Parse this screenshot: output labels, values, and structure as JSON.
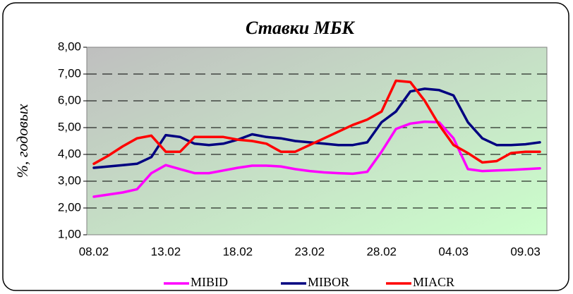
{
  "chart_data": {
    "type": "line",
    "title": "Ставки МБК",
    "y_label": "%, годовых",
    "categories": [
      "08.02",
      null,
      null,
      null,
      null,
      "13.02",
      null,
      null,
      null,
      null,
      "18.02",
      null,
      null,
      null,
      null,
      "23.02",
      null,
      null,
      null,
      null,
      "28.02",
      null,
      null,
      null,
      null,
      "04.03",
      null,
      null,
      null,
      null,
      "09.03",
      null
    ],
    "series": [
      {
        "name": "MIBID",
        "color": "#ff00ff",
        "values": [
          2.42,
          2.5,
          2.58,
          2.7,
          3.3,
          3.6,
          3.45,
          3.3,
          3.3,
          3.4,
          3.5,
          3.58,
          3.58,
          3.55,
          3.45,
          3.38,
          3.33,
          3.3,
          3.28,
          3.35,
          4.1,
          4.95,
          5.15,
          5.22,
          5.2,
          4.6,
          3.45,
          3.38,
          3.4,
          3.42,
          3.45,
          3.48
        ]
      },
      {
        "name": "MIBOR",
        "color": "#000080",
        "values": [
          3.5,
          3.55,
          3.6,
          3.65,
          3.9,
          4.72,
          4.65,
          4.4,
          4.35,
          4.4,
          4.55,
          4.75,
          4.65,
          4.6,
          4.5,
          4.45,
          4.4,
          4.35,
          4.35,
          4.45,
          5.2,
          5.6,
          6.35,
          6.45,
          6.4,
          6.2,
          5.2,
          4.6,
          4.35,
          4.35,
          4.38,
          4.45
        ]
      },
      {
        "name": "MIACR",
        "color": "#ff0000",
        "values": [
          3.65,
          3.95,
          4.3,
          4.6,
          4.7,
          4.1,
          4.1,
          4.65,
          4.65,
          4.65,
          4.55,
          4.5,
          4.4,
          4.1,
          4.1,
          4.35,
          4.6,
          4.85,
          5.1,
          5.3,
          5.6,
          6.75,
          6.7,
          6.0,
          5.1,
          4.35,
          4.05,
          3.7,
          3.75,
          4.05,
          4.1,
          4.1
        ]
      }
    ],
    "ylim": [
      1,
      8
    ],
    "yticks": [
      {
        "value": 1,
        "label": "1,00"
      },
      {
        "value": 2,
        "label": "2,00"
      },
      {
        "value": 3,
        "label": "3,00"
      },
      {
        "value": 4,
        "label": "4,00"
      },
      {
        "value": 5,
        "label": "5,00"
      },
      {
        "value": 6,
        "label": "6,00"
      },
      {
        "value": 7,
        "label": "7,00"
      },
      {
        "value": 8,
        "label": "8,00"
      }
    ],
    "grid": true,
    "legend": "bottom"
  }
}
